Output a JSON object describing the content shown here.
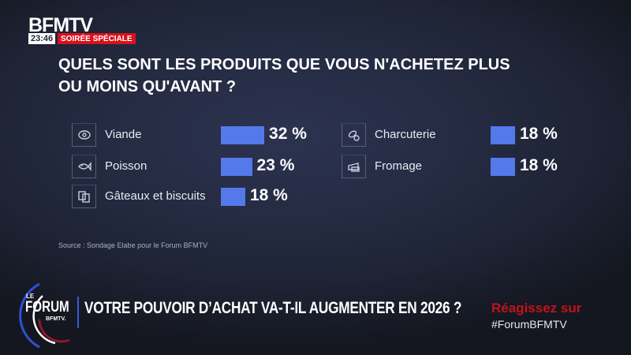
{
  "header": {
    "channel": "BFMTV",
    "time": "23:46",
    "program": "SOIRÉE SPÉCIALE"
  },
  "chart_data": {
    "type": "bar",
    "title": "QUELS SONT LES PRODUITS QUE VOUS N'ACHETEZ PLUS OU MOINS QU'AVANT ?",
    "categories": [
      "Viande",
      "Poisson",
      "Gâteaux et biscuits",
      "Charcuterie",
      "Fromage"
    ],
    "values": [
      32,
      23,
      18,
      18,
      18
    ],
    "value_labels": [
      "32 %",
      "23 %",
      "18 %",
      "18 %",
      "18 %"
    ],
    "icons": [
      "meat-icon",
      "fish-icon",
      "cookies-icon",
      "sausage-icon",
      "cheese-icon"
    ],
    "bar_color": "#5578ea",
    "source": "Source : Sondage Elabe pour le Forum BFMTV"
  },
  "banner": {
    "logo_top": "LE",
    "logo_main": "FORUM",
    "logo_sub": "BFMTV.",
    "headline": "VOTRE POUVOIR D’ACHAT VA-T-IL AUGMENTER EN 2026 ?",
    "react": "Réagissez sur",
    "hashtag": "#ForumBFMTV",
    "react_color": "#c0141c"
  }
}
